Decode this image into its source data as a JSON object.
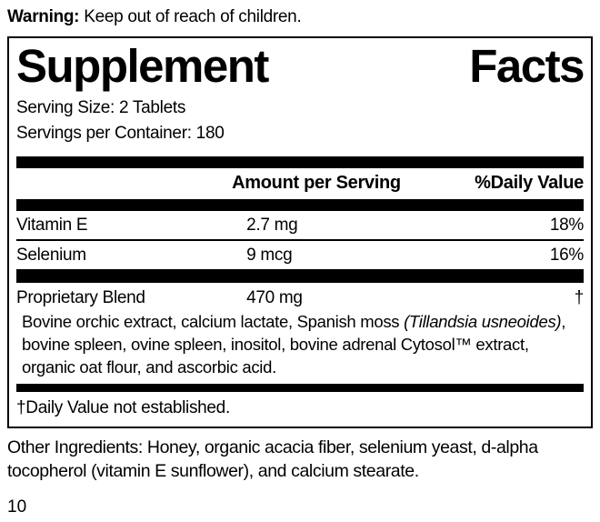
{
  "colors": {
    "text": "#000000",
    "background": "#ffffff",
    "rule": "#000000"
  },
  "warning": {
    "label": "Warning:",
    "text": "Keep out of reach of children."
  },
  "panel": {
    "title_word1": "Supplement",
    "title_word2": "Facts",
    "serving_size": "Serving Size: 2 Tablets",
    "servings_per_container": "Servings per Container: 180",
    "columns": {
      "amount": "Amount per Serving",
      "dv": "%Daily Value"
    },
    "rows": [
      {
        "name": "Vitamin E",
        "amount": "2.7 mg",
        "dv": "18%"
      },
      {
        "name": "Selenium",
        "amount": "9 mcg",
        "dv": "16%"
      }
    ],
    "blend": {
      "name": "Proprietary Blend",
      "amount": "470 mg",
      "dv": "†",
      "description_pre": "Bovine orchic extract, calcium lactate, Spanish moss ",
      "description_italic": "(Tillandsia usneoides)",
      "description_post": ", bovine spleen, ovine spleen, inositol, bovine adrenal Cytosol™ extract, organic oat flour, and ascorbic acid."
    },
    "footnote": "†Daily Value not established."
  },
  "other_ingredients": "Other Ingredients: Honey, organic acacia fiber, selenium yeast, d-alpha tocopherol (vitamin E sunflower), and calcium stearate.",
  "page_number": "10"
}
